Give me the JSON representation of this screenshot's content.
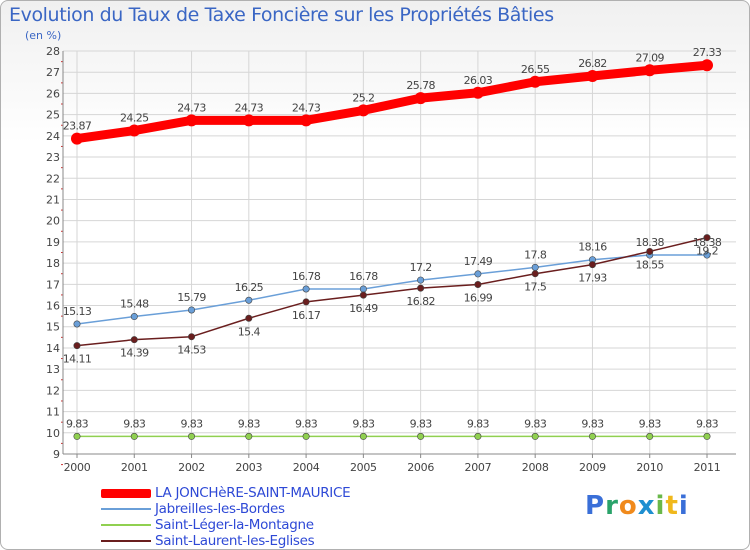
{
  "header": {
    "title": "Evolution du Taux de Taxe Foncière sur les Propriétés Bâties",
    "unit": "(en %)"
  },
  "logo": {
    "letters": [
      "P",
      "r",
      "o",
      "x",
      "i",
      "t",
      "i"
    ],
    "colors": [
      "#3a6fd8",
      "#2aa36a",
      "#f08a1c",
      "#1e8fd0",
      "#6ab84a",
      "#f0b81c",
      "#3a6fd8"
    ]
  },
  "colors": {
    "axis_label": "#444444",
    "grid": "#d6d6d6",
    "axis": "#888888",
    "tick": "#cc3333"
  },
  "chart_data": {
    "type": "line",
    "title": "Evolution du Taux de Taxe Foncière sur les Propriétés Bâties",
    "ylabel": "(en %)",
    "xlabel": "",
    "grid": true,
    "legend": "bottom-left",
    "ylim": [
      9,
      28
    ],
    "yticks": [
      9,
      10,
      11,
      12,
      13,
      14,
      15,
      16,
      17,
      18,
      19,
      20,
      21,
      22,
      23,
      24,
      25,
      26,
      27,
      28
    ],
    "x": [
      "2000",
      "2001",
      "2002",
      "2003",
      "2004",
      "2005",
      "2006",
      "2007",
      "2008",
      "2009",
      "2010",
      "2011"
    ],
    "series": [
      {
        "name": "LA JONCHèRE-SAINT-MAURICE",
        "color": "#ff0000",
        "values": [
          23.87,
          24.25,
          24.73,
          24.73,
          24.73,
          25.2,
          25.78,
          26.03,
          26.55,
          26.82,
          27.09,
          27.33
        ],
        "labels": [
          "23.87",
          "24.25",
          "24.73",
          "24.73",
          "24.73",
          "25.2",
          "25.78",
          "26.03",
          "26.55",
          "26.82",
          "27.09",
          "27.33"
        ]
      },
      {
        "name": "Jabreilles-les-Bordes",
        "color": "#6a9fd8",
        "values": [
          15.13,
          15.48,
          15.79,
          16.25,
          16.78,
          16.78,
          17.2,
          17.49,
          17.8,
          18.16,
          18.38,
          18.38
        ],
        "labels": [
          "15.13",
          "15.48",
          "15.79",
          "16.25",
          "16.78",
          "16.78",
          "17.2",
          "17.49",
          "17.8",
          "18.16",
          "18.38",
          "18.38"
        ]
      },
      {
        "name": "Saint-Léger-la-Montagne",
        "color": "#90d050",
        "values": [
          9.83,
          9.83,
          9.83,
          9.83,
          9.83,
          9.83,
          9.83,
          9.83,
          9.83,
          9.83,
          9.83,
          9.83
        ],
        "labels": [
          "9.83",
          "9.83",
          "9.83",
          "9.83",
          "9.83",
          "9.83",
          "9.83",
          "9.83",
          "9.83",
          "9.83",
          "9.83",
          "9.83"
        ]
      },
      {
        "name": "Saint-Laurent-les-Eglises",
        "color": "#6a1e1e",
        "values": [
          14.11,
          14.39,
          14.53,
          15.4,
          16.17,
          16.49,
          16.82,
          16.99,
          17.5,
          17.93,
          18.55,
          19.2
        ],
        "labels": [
          "14.11",
          "14.39",
          "14.53",
          "15.4",
          "16.17",
          "16.49",
          "16.82",
          "16.99",
          "17.5",
          "17.93",
          "18.55",
          "19.2"
        ]
      }
    ]
  }
}
